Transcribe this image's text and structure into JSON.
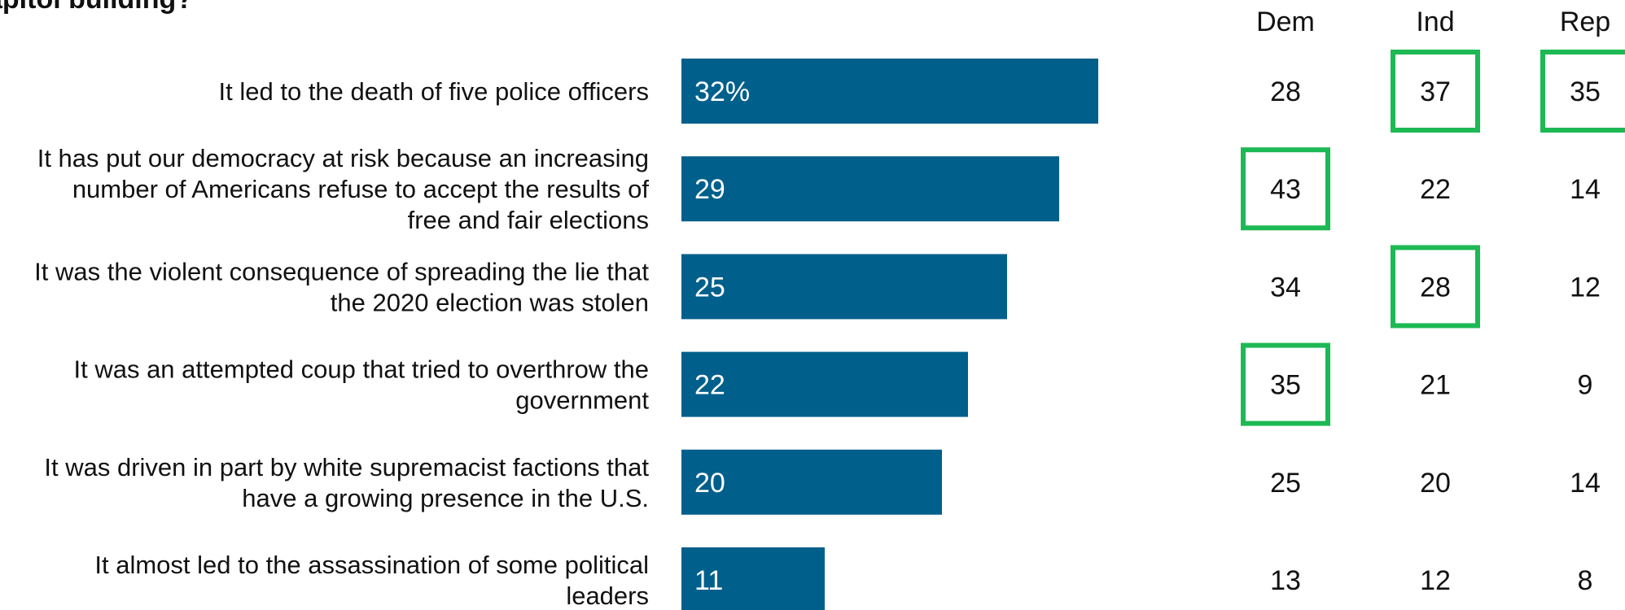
{
  "chart_data": {
    "type": "bar",
    "title": "apitol building?",
    "orientation": "horizontal",
    "xlim": [
      0,
      35
    ],
    "grid": false,
    "categories": [
      [
        "It led to the death of five police officers"
      ],
      [
        "It has put our democracy at risk because an increasing",
        "number of Americans refuse to accept the results of",
        "free and fair elections"
      ],
      [
        "It was the violent consequence of spreading the lie that",
        "the 2020 election was stolen"
      ],
      [
        "It was an attempted coup that tried to overthrow the",
        "government"
      ],
      [
        "It was driven in part by white supremacist factions that",
        "have a growing presence in the U.S."
      ],
      [
        "It almost led to the assassination of some political",
        "leaders"
      ]
    ],
    "values": [
      32,
      29,
      25,
      22,
      20,
      11
    ],
    "value_labels": [
      "32%",
      "29",
      "25",
      "22",
      "20",
      "11"
    ],
    "bar_color": "#005f8b",
    "table": {
      "columns": [
        "Dem",
        "Ind",
        "Rep"
      ],
      "rows": [
        [
          28,
          37,
          35
        ],
        [
          43,
          22,
          14
        ],
        [
          34,
          28,
          12
        ],
        [
          35,
          21,
          9
        ],
        [
          25,
          20,
          14
        ],
        [
          13,
          12,
          8
        ]
      ],
      "highlighted": [
        [
          false,
          true,
          true
        ],
        [
          true,
          false,
          false
        ],
        [
          false,
          true,
          false
        ],
        [
          true,
          false,
          false
        ],
        [
          false,
          false,
          false
        ],
        [
          false,
          false,
          false
        ]
      ],
      "highlight_color": "#1db954"
    }
  }
}
